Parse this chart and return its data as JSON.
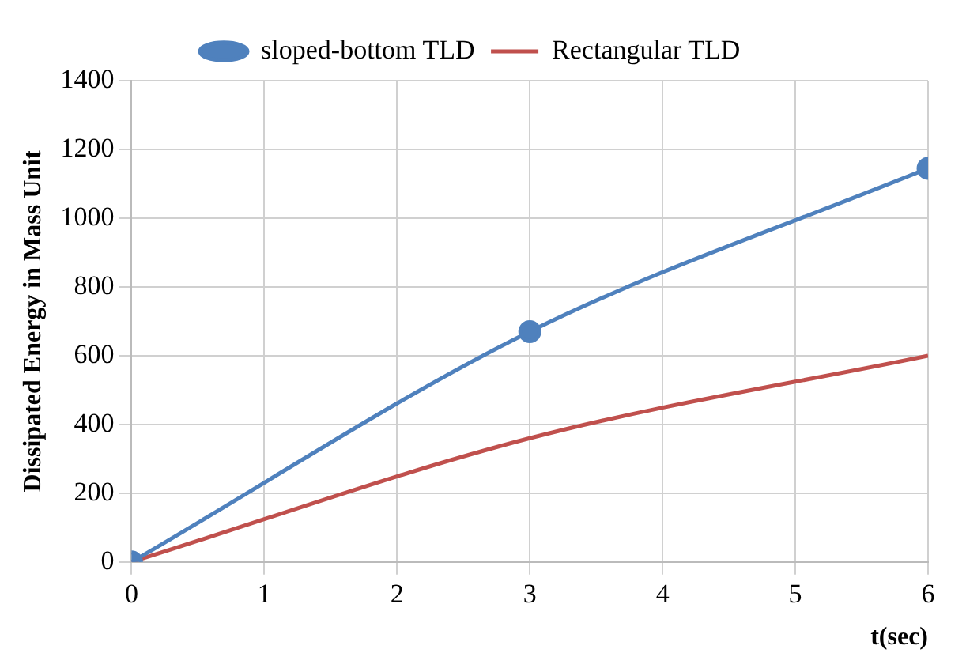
{
  "chart_data": {
    "type": "line",
    "xlabel": "t(sec)",
    "ylabel": "Dissipated Energy in Mass Unit",
    "xlim": [
      0,
      6
    ],
    "xticks": [
      0,
      1,
      2,
      3,
      4,
      5,
      6
    ],
    "ylim": [
      0,
      1400
    ],
    "yticks": [
      0,
      200,
      400,
      600,
      800,
      1000,
      1200,
      1400
    ],
    "grid": true,
    "legend": "top",
    "series": [
      {
        "name": "sloped-bottom TLD",
        "color": "#4f81bd",
        "x": [
          0,
          3,
          6
        ],
        "values": [
          0,
          670,
          1145
        ],
        "marker": "circle"
      },
      {
        "name": "Rectangular TLD",
        "color": "#c0504d",
        "x": [
          0,
          3,
          6
        ],
        "values": [
          0,
          360,
          600
        ],
        "marker": "none"
      }
    ]
  }
}
